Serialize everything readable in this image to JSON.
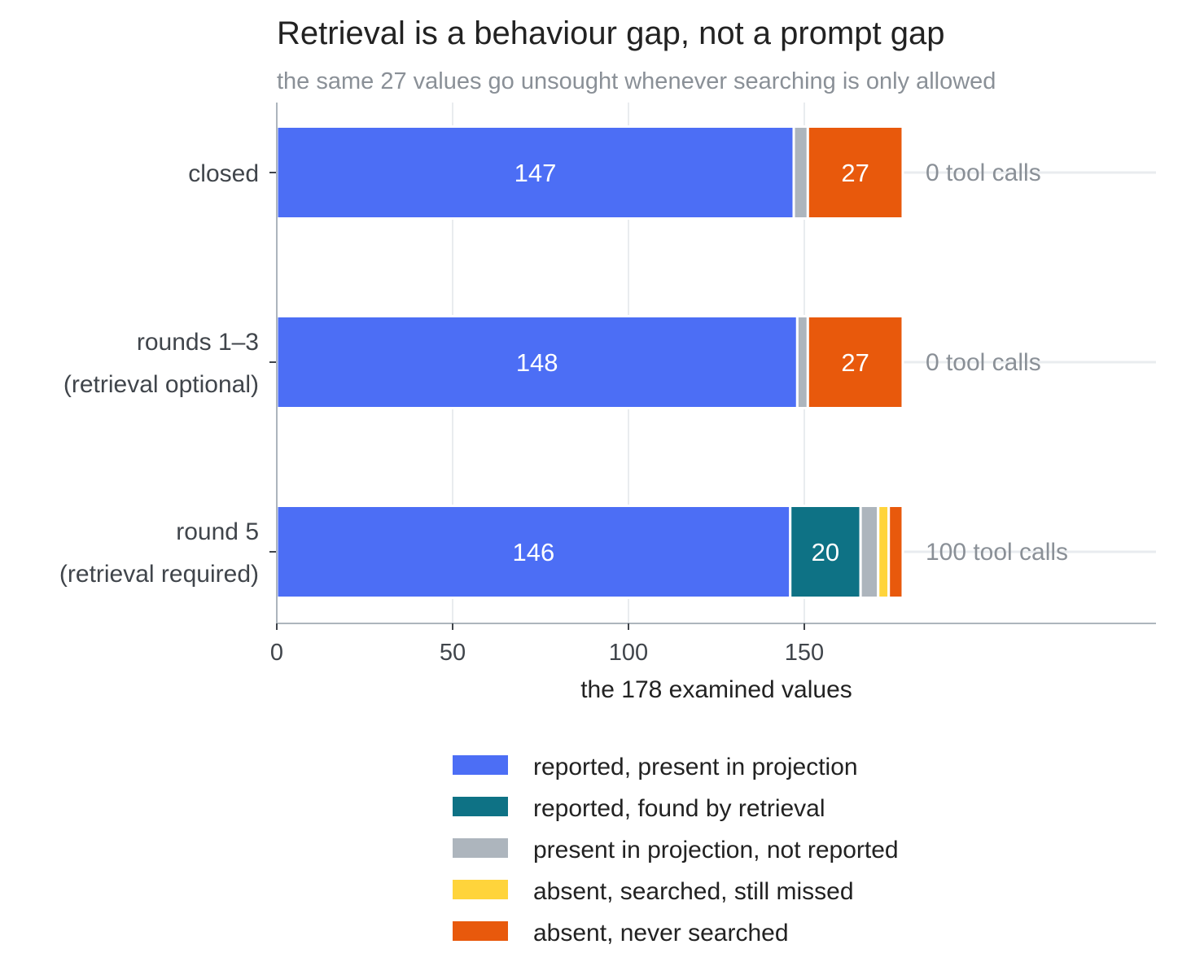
{
  "chart_data": {
    "type": "bar",
    "orientation": "horizontal",
    "stacked": true,
    "title": "Retrieval is a behaviour gap, not a prompt gap",
    "subtitle": "the same 27 values go unsought whenever searching is only allowed",
    "xlabel": "the 178 examined values",
    "ylabel": "",
    "xlim": [
      0,
      250
    ],
    "xticks": [
      0,
      50,
      100,
      150
    ],
    "grid": true,
    "legend_position": "bottom",
    "categories": [
      [
        "closed"
      ],
      [
        "rounds 1–3",
        "(retrieval optional)"
      ],
      [
        "round 5",
        "(retrieval required)"
      ]
    ],
    "series": [
      {
        "name": "reported, present in projection",
        "color": "#4c6ef5",
        "values": [
          147,
          148,
          146
        ],
        "labels": [
          "147",
          "148",
          "146"
        ]
      },
      {
        "name": "reported, found by retrieval",
        "color": "#0e7285",
        "values": [
          0,
          0,
          20
        ],
        "labels": [
          "",
          "",
          "20"
        ]
      },
      {
        "name": "present in projection, not reported",
        "color": "#adb5bd",
        "values": [
          4,
          3,
          5
        ],
        "labels": [
          "",
          "",
          ""
        ]
      },
      {
        "name": "absent, searched, still missed",
        "color": "#ffd43b",
        "values": [
          0,
          0,
          3
        ],
        "labels": [
          "",
          "",
          ""
        ]
      },
      {
        "name": "absent, never searched",
        "color": "#e8590c",
        "values": [
          27,
          27,
          4
        ],
        "labels": [
          "27",
          "27",
          ""
        ]
      }
    ],
    "annotations": [
      "0 tool calls",
      "0 tool calls",
      "100 tool calls"
    ]
  }
}
